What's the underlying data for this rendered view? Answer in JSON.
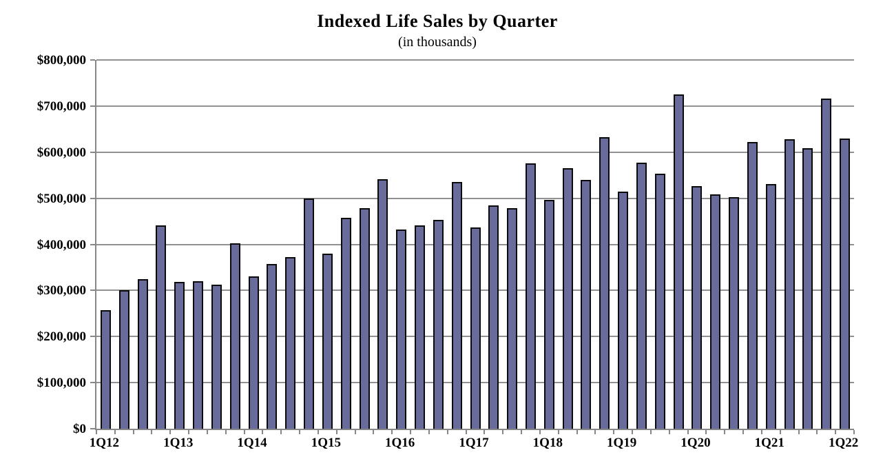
{
  "title": "Indexed Life Sales by Quarter",
  "subtitle": "(in thousands)",
  "chart_data": {
    "type": "bar",
    "title": "Indexed Life Sales by Quarter",
    "subtitle": "(in thousands)",
    "xlabel": "",
    "ylabel": "",
    "ylim": [
      0,
      800000
    ],
    "ytick_interval": 100000,
    "ytick_labels": [
      "$0",
      "$100,000",
      "$200,000",
      "$300,000",
      "$400,000",
      "$500,000",
      "$600,000",
      "$700,000",
      "$800,000"
    ],
    "xtick_labels_shown": [
      "1Q12",
      "1Q13",
      "1Q14",
      "1Q15",
      "1Q16",
      "1Q17",
      "1Q18",
      "1Q19",
      "1Q20",
      "1Q21",
      "1Q22"
    ],
    "grid": true,
    "legend_position": "none",
    "bar_color": "#696C9B",
    "bar_border_color": "#0a0a0a",
    "axis_color": "#878787",
    "gridline_color": "#919191",
    "categories": [
      "1Q12",
      "2Q12",
      "3Q12",
      "4Q12",
      "1Q13",
      "2Q13",
      "3Q13",
      "4Q13",
      "1Q14",
      "2Q14",
      "3Q14",
      "4Q14",
      "1Q15",
      "2Q15",
      "3Q15",
      "4Q15",
      "1Q16",
      "2Q16",
      "3Q16",
      "4Q16",
      "1Q17",
      "2Q17",
      "3Q17",
      "4Q17",
      "1Q18",
      "2Q18",
      "3Q18",
      "4Q18",
      "1Q19",
      "2Q19",
      "3Q19",
      "4Q19",
      "1Q20",
      "2Q20",
      "3Q20",
      "4Q20",
      "1Q21",
      "2Q21",
      "3Q21",
      "4Q21",
      "1Q22"
    ],
    "values": [
      257000,
      300000,
      324000,
      441000,
      319000,
      320000,
      313000,
      403000,
      330000,
      358000,
      373000,
      499000,
      380000,
      458000,
      479000,
      541000,
      432000,
      441000,
      453000,
      536000,
      437000,
      484000,
      478000,
      575000,
      496000,
      565000,
      540000,
      632000,
      515000,
      577000,
      554000,
      725000,
      526000,
      508000,
      503000,
      622000,
      531000,
      628000,
      608000,
      717000,
      629000
    ]
  }
}
